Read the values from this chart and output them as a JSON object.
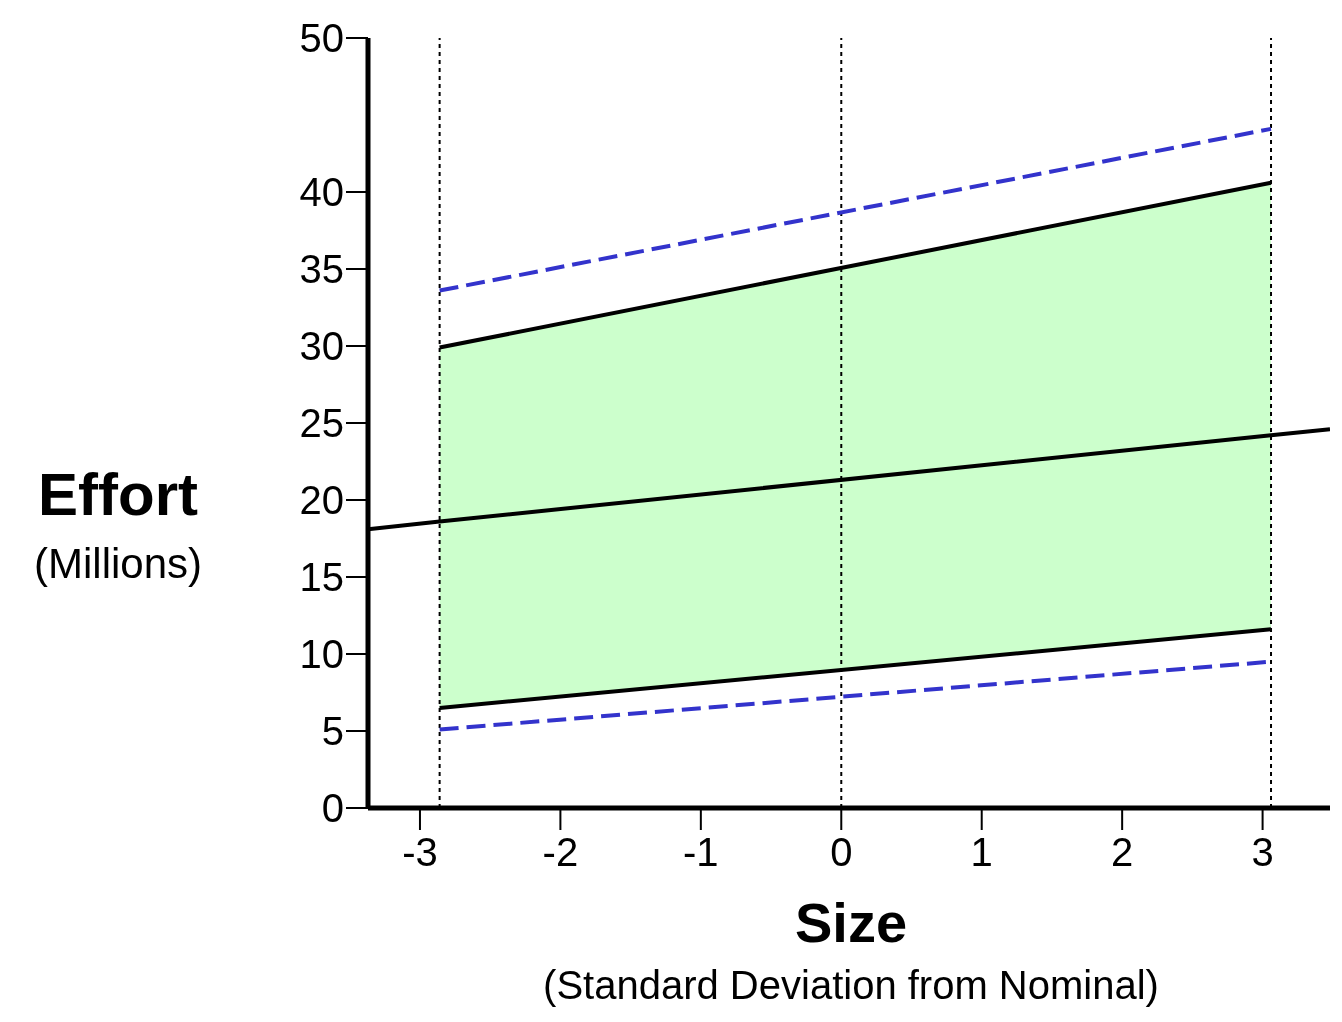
{
  "chart_data": {
    "type": "line",
    "xlabel": "Size",
    "ylabel": "Effort",
    "annotations": [
      "(Standard Deviation from Nominal)",
      "(Millions)"
    ],
    "xlim": [
      -3.37,
      3.48
    ],
    "ylim": [
      0,
      50
    ],
    "xticks": [
      -3,
      -2,
      -1,
      0,
      1,
      2,
      3
    ],
    "yticks": [
      0,
      5,
      10,
      15,
      20,
      25,
      30,
      35,
      40,
      50
    ],
    "grid": false,
    "legend": false,
    "marker": "none",
    "series": [
      {
        "color": "#000000",
        "x": [
          -3.37,
          -2.86,
          3.06,
          3.48
        ],
        "values": [
          18.1,
          18.6,
          24.2,
          24.6
        ],
        "lower": [
          null,
          6.5,
          11.6,
          null
        ],
        "upper": [
          null,
          29.9,
          40.6,
          null
        ],
        "line_style": "solid"
      },
      {
        "color": "#000000",
        "x": [
          -2.86,
          3.06
        ],
        "values": [
          29.9,
          40.6
        ],
        "line_style": "solid"
      },
      {
        "color": "#000000",
        "x": [
          -2.86,
          3.06
        ],
        "values": [
          6.5,
          11.6
        ],
        "line_style": "solid"
      },
      {
        "color": "#3333cc",
        "x": [
          -2.86,
          3.06
        ],
        "values": [
          33.6,
          44.1
        ],
        "line_style": "dashed"
      },
      {
        "color": "#3333cc",
        "x": [
          -2.86,
          3.06
        ],
        "values": [
          5.1,
          9.5
        ],
        "line_style": "dashed"
      }
    ],
    "ref_lines": [
      {
        "axis": "x",
        "value": -2.86,
        "color": "#000000",
        "line_style": "dotted"
      },
      {
        "axis": "x",
        "value": 0,
        "color": "#000000",
        "line_style": "dotted"
      },
      {
        "axis": "x",
        "value": 3.06,
        "color": "#000000",
        "line_style": "dotted"
      }
    ]
  }
}
